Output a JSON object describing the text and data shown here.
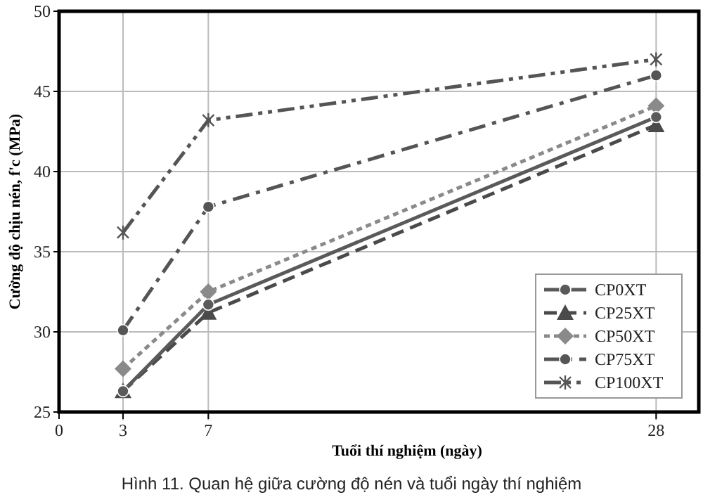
{
  "chart_data": {
    "type": "line",
    "xlabel": "Tuổi thí nghiệm (ngày)",
    "ylabel": "Cường độ chịu nén, f'c (MPa)",
    "annotations": [
      "Hình 11. Quan hệ giữa cường độ nén và tuổi ngày thí nghiệm"
    ],
    "x": [
      3,
      7,
      28
    ],
    "xlim": [
      0,
      30
    ],
    "xticks": [
      0,
      3,
      7,
      28
    ],
    "ylim": [
      25,
      50
    ],
    "yticks": [
      25,
      30,
      35,
      40,
      45,
      50
    ],
    "grid": true,
    "legend": "bottom right",
    "series": [
      {
        "name": "CP0XT",
        "color": "#5a5a5a",
        "values": [
          26.3,
          31.7,
          43.4
        ],
        "marker": "circle",
        "line_style": "solid"
      },
      {
        "name": "CP25XT",
        "color": "#4a4a4a",
        "values": [
          26.3,
          31.2,
          42.9
        ],
        "marker": "triangle",
        "line_style": "dashed"
      },
      {
        "name": "CP50XT",
        "color": "#8a8a8a",
        "values": [
          27.7,
          32.5,
          44.1
        ],
        "marker": "diamond",
        "line_style": "dotted"
      },
      {
        "name": "CP75XT",
        "color": "#555555",
        "values": [
          30.1,
          37.8,
          46.0
        ],
        "marker": "circle",
        "line_style": "dashdot"
      },
      {
        "name": "CP100XT",
        "color": "#555555",
        "values": [
          36.2,
          43.2,
          47.0
        ],
        "marker": "cross",
        "line_style": "dashdotdot"
      }
    ]
  }
}
